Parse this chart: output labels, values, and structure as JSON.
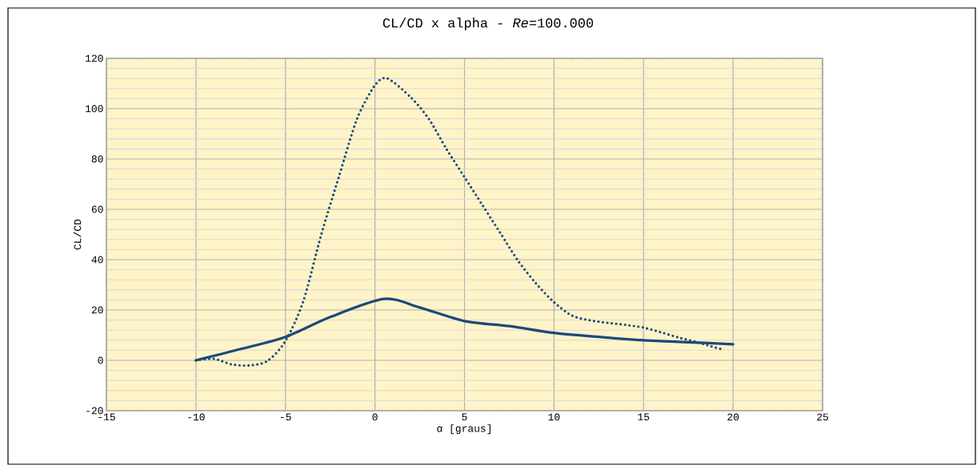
{
  "chart_data": {
    "type": "line",
    "title": "CL/CD x alpha - *Re*=100.000",
    "xlabel": "α [graus]",
    "ylabel": "CL/CD",
    "xlim": [
      -15,
      25
    ],
    "xticks": [
      -15,
      -10,
      -5,
      0,
      5,
      10,
      15,
      20,
      25
    ],
    "ylim": [
      -20,
      120
    ],
    "yticks": [
      -20,
      0,
      20,
      40,
      60,
      80,
      100,
      120
    ],
    "grid": true,
    "marker": "none",
    "series": [
      {
        "color": "#1b4a78",
        "line_style": "solid",
        "x": [
          -10,
          -7.5,
          -5,
          -2.5,
          0.5,
          2.5,
          5,
          7.5,
          10,
          12.5,
          15,
          17.5,
          20
        ],
        "values": [
          0,
          4.5,
          9.3,
          17.2,
          24.4,
          21,
          15.6,
          13.6,
          10.9,
          9.3,
          8.0,
          7.2,
          6.4
        ]
      },
      {
        "color": "#1b4a78",
        "line_style": "dotted",
        "x": [
          -10,
          -9,
          -8,
          -7,
          -6,
          -5,
          -4,
          -3,
          -2,
          -1,
          0,
          0.7,
          2,
          3,
          4,
          5,
          6,
          7,
          8,
          9,
          10,
          11,
          12,
          13,
          14,
          15,
          16,
          17,
          18,
          19,
          19.5
        ],
        "values": [
          0,
          0.6,
          -1.6,
          -2.0,
          -0.2,
          7.7,
          23.6,
          50,
          73.3,
          96,
          109.3,
          112,
          104.5,
          96,
          83.9,
          72.8,
          61.7,
          50.6,
          39.5,
          30.5,
          23.1,
          17.8,
          15.9,
          14.9,
          14.1,
          13,
          11.1,
          9,
          7.2,
          5.1,
          4.2
        ]
      }
    ]
  }
}
